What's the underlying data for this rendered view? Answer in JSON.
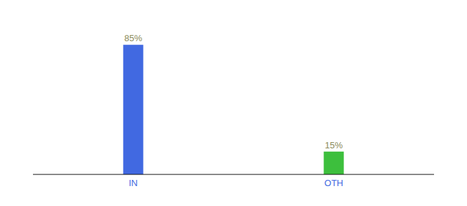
{
  "chart_data": {
    "type": "bar",
    "categories": [
      "IN",
      "OTH"
    ],
    "values": [
      85,
      15
    ],
    "value_labels": [
      "85%",
      "15%"
    ],
    "colors": [
      "#4169e1",
      "#3dbf3d"
    ],
    "ylim": [
      0,
      100
    ],
    "data_labels": true,
    "tick_labels": "x",
    "grid": false
  }
}
